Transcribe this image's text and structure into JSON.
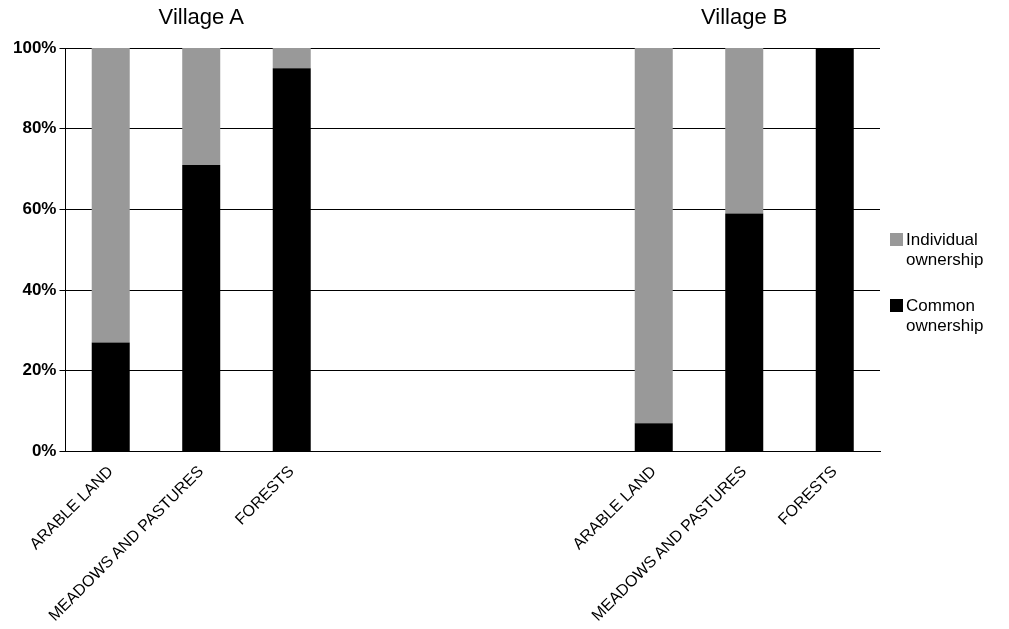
{
  "chart_data": {
    "type": "bar",
    "stacked": true,
    "categories": [
      "ARABLE LAND",
      "MEADOWS AND PASTURES",
      "FORESTS",
      null,
      null,
      null,
      "ARABLE LAND",
      "MEADOWS AND PASTURES",
      "FORESTS"
    ],
    "series": [
      {
        "name": "Common ownership",
        "color": "#000000",
        "values": [
          27,
          71,
          95,
          null,
          null,
          null,
          7,
          59,
          100
        ]
      },
      {
        "name": "Individual ownership",
        "color": "#999999",
        "values": [
          73,
          29,
          5,
          null,
          null,
          null,
          93,
          41,
          0
        ]
      }
    ],
    "ylim": [
      0,
      100
    ],
    "yticks": [
      {
        "value": 0,
        "label": "0%"
      },
      {
        "value": 20,
        "label": "20%"
      },
      {
        "value": 40,
        "label": "40%"
      },
      {
        "value": 60,
        "label": "60%"
      },
      {
        "value": 80,
        "label": "80%"
      },
      {
        "value": 100,
        "label": "100%"
      }
    ],
    "grid": "y",
    "legend": "right",
    "annotations": [
      "Village A",
      "Village B"
    ]
  }
}
